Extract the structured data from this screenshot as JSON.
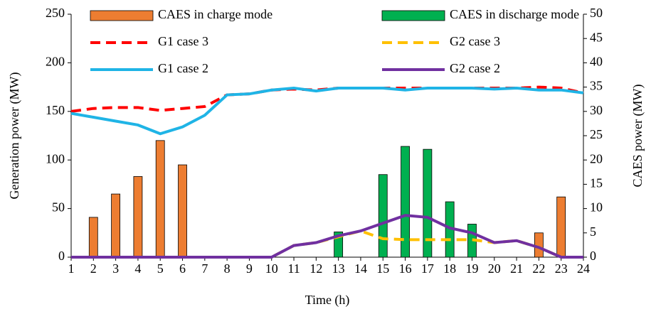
{
  "chart_data": {
    "type": "combo",
    "categories": [
      "1",
      "2",
      "3",
      "4",
      "5",
      "6",
      "7",
      "8",
      "9",
      "10",
      "11",
      "12",
      "13",
      "14",
      "15",
      "16",
      "17",
      "18",
      "19",
      "20",
      "21",
      "22",
      "23",
      "24"
    ],
    "xlabel": "Time (h)",
    "ylabel": "Generation power (MW)",
    "y2label": "CAES power (MW)",
    "ylim": [
      0,
      250
    ],
    "yticks": [
      0,
      50,
      100,
      150,
      200,
      250
    ],
    "y2lim": [
      0,
      50
    ],
    "y2ticks": [
      0,
      5,
      10,
      15,
      20,
      25,
      30,
      35,
      40,
      45,
      50
    ],
    "series": [
      {
        "name": "CAES in charge mode",
        "type": "bar",
        "axis": "y2",
        "color": "#ed7d31",
        "values": [
          null,
          8.2,
          13,
          16.6,
          24,
          19,
          null,
          null,
          null,
          null,
          null,
          null,
          null,
          null,
          null,
          null,
          null,
          null,
          null,
          null,
          null,
          5,
          12.4,
          null
        ]
      },
      {
        "name": "CAES in discharge mode",
        "type": "bar",
        "axis": "y2",
        "color": "#00b050",
        "values": [
          null,
          null,
          null,
          null,
          null,
          null,
          null,
          null,
          null,
          null,
          null,
          null,
          5.2,
          null,
          17,
          22.8,
          22.2,
          11.4,
          6.8,
          null,
          null,
          null,
          null,
          null
        ]
      },
      {
        "name": "G1 case 3",
        "type": "line",
        "dash": true,
        "color": "#ff0000",
        "values": [
          150,
          153,
          154,
          154,
          151,
          153,
          155,
          167,
          168,
          172,
          173,
          172,
          174,
          174,
          174,
          174,
          174,
          174,
          174,
          174,
          174,
          175,
          174,
          169
        ]
      },
      {
        "name": "G2 case 3",
        "type": "line",
        "dash": true,
        "color": "#ffc000",
        "values": [
          0,
          0,
          0,
          0,
          0,
          0,
          0,
          0,
          0,
          0,
          12,
          15,
          21,
          27,
          19,
          18,
          18,
          18,
          18,
          15,
          17,
          10,
          0,
          0
        ]
      },
      {
        "name": "G1 case 2",
        "type": "line",
        "dash": false,
        "color": "#1fb4e6",
        "values": [
          148,
          144,
          140,
          136,
          127,
          134,
          146,
          167,
          168,
          172,
          174,
          171,
          174,
          174,
          174,
          172,
          174,
          174,
          174,
          173,
          174,
          172,
          172,
          169
        ]
      },
      {
        "name": "G2 case 2",
        "type": "line",
        "dash": false,
        "color": "#7030a0",
        "values": [
          0,
          0,
          0,
          0,
          0,
          0,
          0,
          0,
          0,
          0,
          12,
          15,
          22,
          27,
          35,
          43,
          41,
          30,
          25,
          15,
          17,
          10,
          0,
          0
        ]
      }
    ]
  }
}
